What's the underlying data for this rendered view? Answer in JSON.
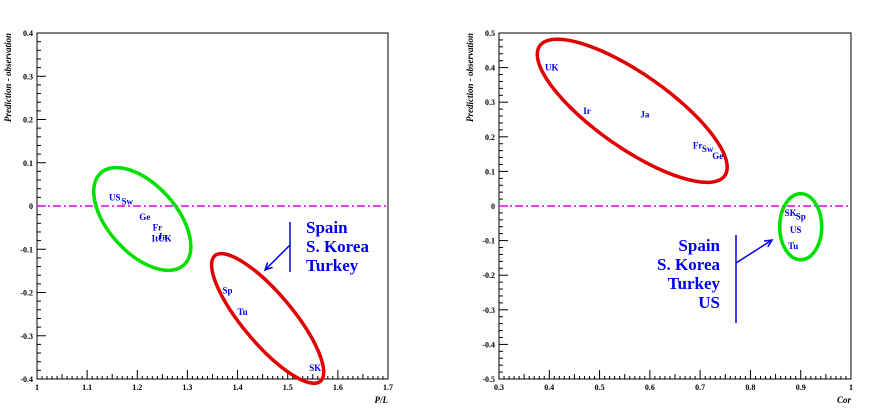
{
  "chart_data": [
    {
      "type": "scatter",
      "xlabel": "P/L",
      "ylabel": "Prediction - observation",
      "xlim": [
        1.0,
        1.7
      ],
      "ylim": [
        -0.4,
        0.4
      ],
      "xticks": [
        "1",
        "1.1",
        "1.2",
        "1.3",
        "1.4",
        "1.5",
        "1.6",
        "1.7"
      ],
      "yticks": [
        "-0.4",
        "-0.3",
        "-0.2",
        "-0.1",
        "0",
        "0.1",
        "0.2",
        "0.3",
        "0.4"
      ],
      "reference_line": {
        "y": 0,
        "color": "#dd00dd",
        "style": "dash-dot"
      },
      "points": [
        {
          "label": "US",
          "x": 1.155,
          "y": 0.02
        },
        {
          "label": "Sw",
          "x": 1.18,
          "y": 0.01
        },
        {
          "label": "Ge",
          "x": 1.215,
          "y": -0.025
        },
        {
          "label": "Fr",
          "x": 1.24,
          "y": -0.05
        },
        {
          "label": "Ja",
          "x": 1.25,
          "y": -0.07
        },
        {
          "label": "It",
          "x": 1.235,
          "y": -0.075
        },
        {
          "label": "UK",
          "x": 1.255,
          "y": -0.075
        },
        {
          "label": "Sp",
          "x": 1.38,
          "y": -0.195
        },
        {
          "label": "Tu",
          "x": 1.41,
          "y": -0.245
        },
        {
          "label": "SK",
          "x": 1.555,
          "y": -0.375
        }
      ],
      "groups": [
        {
          "color": "#00e000",
          "members": [
            "US",
            "Sw",
            "Ge",
            "Fr",
            "Ja",
            "It",
            "UK"
          ]
        },
        {
          "color": "#e00000",
          "members": [
            "Sp",
            "Tu",
            "SK"
          ]
        }
      ],
      "annotation": {
        "lines": [
          "Spain",
          "S. Korea",
          "Turkey"
        ],
        "color": "#0000ee"
      }
    },
    {
      "type": "scatter",
      "xlabel": "Cor",
      "ylabel": "Prediction - observation",
      "xlim": [
        0.3,
        1.0
      ],
      "ylim": [
        -0.5,
        0.5
      ],
      "xticks": [
        "0.3",
        "0.4",
        "0.5",
        "0.6",
        "0.7",
        "0.8",
        "0.9",
        "1"
      ],
      "yticks": [
        "-0.5",
        "-0.4",
        "-0.3",
        "-0.2",
        "-0.1",
        "0",
        "0.1",
        "0.2",
        "0.3",
        "0.4",
        "0.5"
      ],
      "reference_line": {
        "y": 0,
        "color": "#dd00dd",
        "style": "dash-dot"
      },
      "points": [
        {
          "label": "UK",
          "x": 0.405,
          "y": 0.4
        },
        {
          "label": "Ir",
          "x": 0.475,
          "y": 0.275
        },
        {
          "label": "Ja",
          "x": 0.59,
          "y": 0.265
        },
        {
          "label": "Fr",
          "x": 0.695,
          "y": 0.175
        },
        {
          "label": "Sw",
          "x": 0.715,
          "y": 0.165
        },
        {
          "label": "Ge",
          "x": 0.735,
          "y": 0.145
        },
        {
          "label": "SK",
          "x": 0.88,
          "y": -0.02
        },
        {
          "label": "Sp",
          "x": 0.9,
          "y": -0.03
        },
        {
          "label": "US",
          "x": 0.89,
          "y": -0.07
        },
        {
          "label": "Tu",
          "x": 0.885,
          "y": -0.115
        }
      ],
      "groups": [
        {
          "color": "#e00000",
          "members": [
            "UK",
            "Ir",
            "Ja",
            "Fr",
            "Sw",
            "Ge"
          ]
        },
        {
          "color": "#00e000",
          "members": [
            "SK",
            "Sp",
            "US",
            "Tu"
          ]
        }
      ],
      "annotation": {
        "lines": [
          "Spain",
          "S. Korea",
          "Turkey",
          "US"
        ],
        "color": "#0000ee"
      }
    }
  ]
}
